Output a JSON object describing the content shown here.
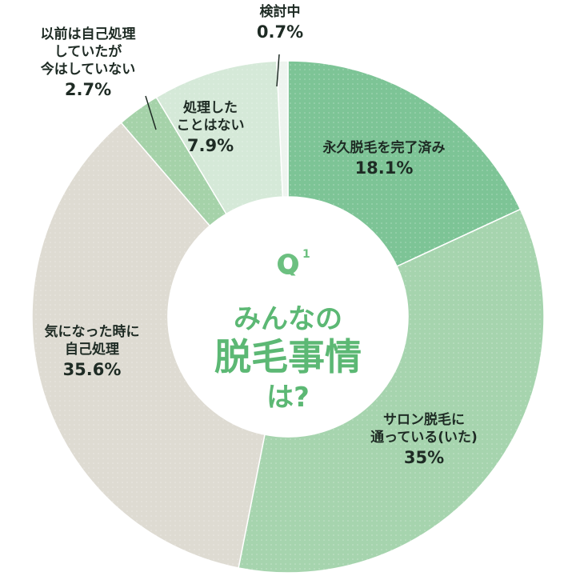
{
  "chart_data": {
    "type": "pie",
    "center": {
      "q_letter": "Q",
      "q_number": "1",
      "line1": "みんなの",
      "line2": "脱毛事情",
      "line3": "は?"
    },
    "slices": [
      {
        "name_lines": [
          "永久脱毛を完了済み"
        ],
        "value": 18.1,
        "value_label": "18.1%",
        "color": "#7dc496"
      },
      {
        "name_lines": [
          "サロン脱毛に",
          "通っている(いた)"
        ],
        "value": 35,
        "value_label": "35%",
        "color": "#a6d4ae"
      },
      {
        "name_lines": [
          "気になった時に",
          "自己処理"
        ],
        "value": 35.6,
        "value_label": "35.6%",
        "color": "#dedbd2"
      },
      {
        "name_lines": [
          "以前は自己処理",
          "していたが",
          "今はしていない"
        ],
        "value": 2.7,
        "value_label": "2.7%",
        "color": "#a5d2a9"
      },
      {
        "name_lines": [
          "処理した",
          "ことはない"
        ],
        "value": 7.9,
        "value_label": "7.9%",
        "color": "#d5e9d8"
      },
      {
        "name_lines": [
          "検討中"
        ],
        "value": 0.7,
        "value_label": "0.7%",
        "color": "#eef4ef"
      }
    ]
  }
}
